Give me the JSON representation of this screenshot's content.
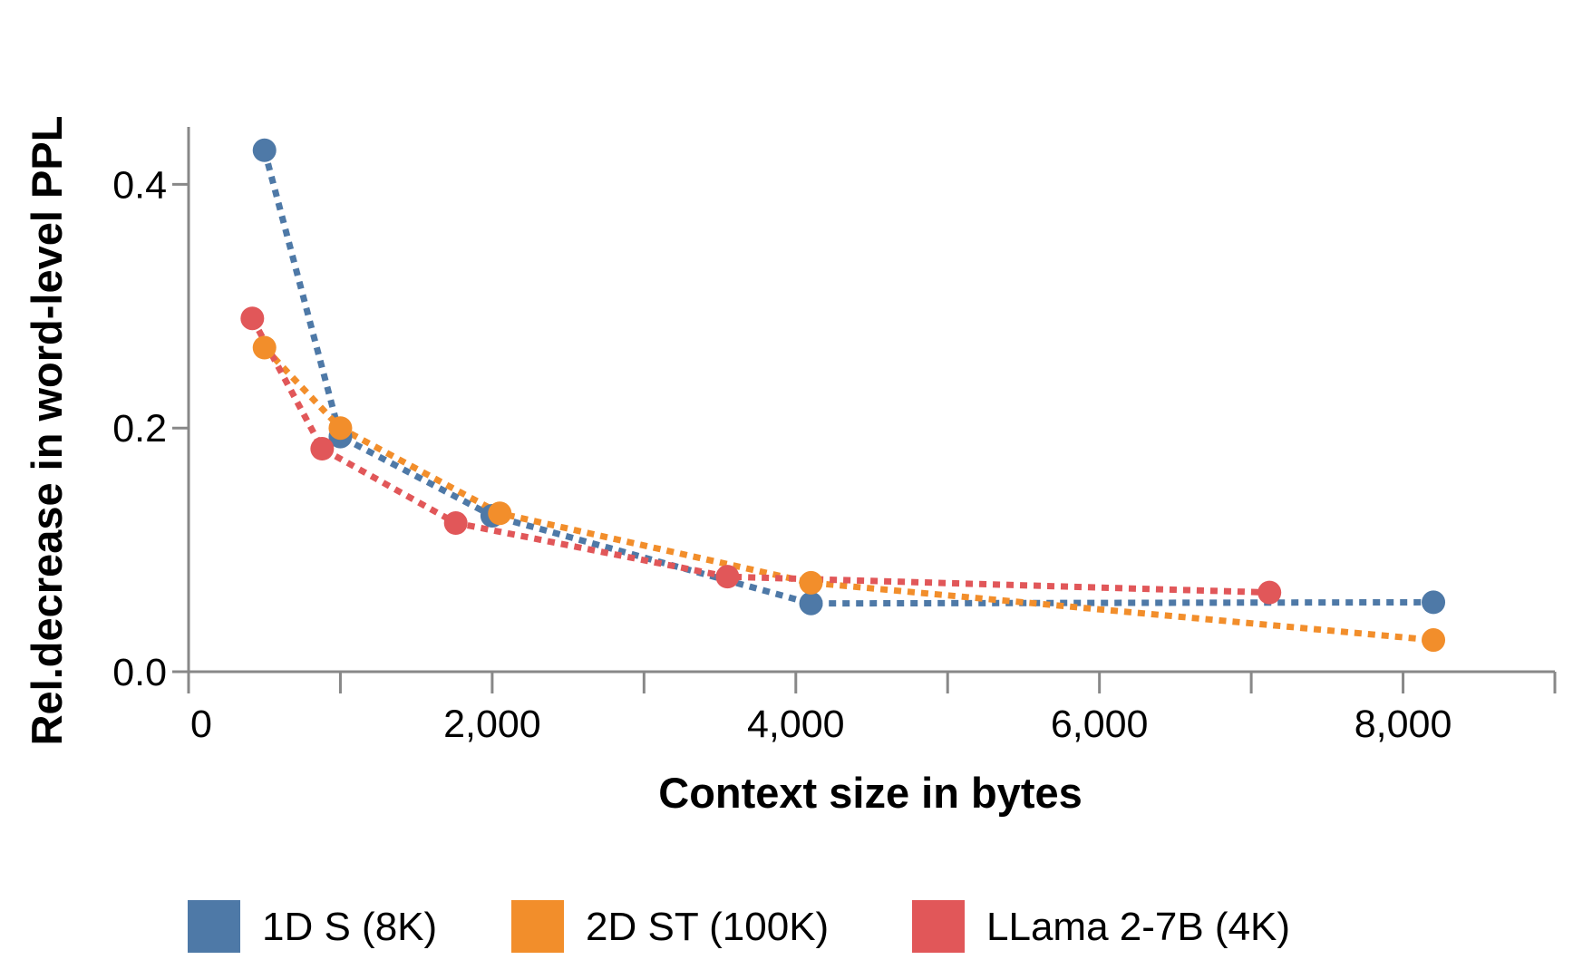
{
  "chart_data": {
    "type": "line",
    "title": "",
    "xlabel": "Context size in bytes",
    "ylabel": "Rel.decrease in word-level PPL",
    "xlim": [
      0,
      9000
    ],
    "ylim": [
      0,
      0.45
    ],
    "x_ticks": [
      {
        "value": 0,
        "label": "0"
      },
      {
        "value": 2000,
        "label": "2,000"
      },
      {
        "value": 4000,
        "label": "4,000"
      },
      {
        "value": 6000,
        "label": "6,000"
      },
      {
        "value": 8000,
        "label": "8,000"
      }
    ],
    "x_minor_ticks": [
      1000,
      3000,
      5000,
      7000,
      9000
    ],
    "y_ticks": [
      {
        "value": 0.0,
        "label": "0.0"
      },
      {
        "value": 0.2,
        "label": "0.2"
      },
      {
        "value": 0.4,
        "label": "0.4"
      }
    ],
    "grid": false,
    "line_style": "dotted",
    "legend_position": "bottom",
    "series": [
      {
        "name": "1D S (8K)",
        "color": "#4e79a7",
        "x": [
          500,
          1000,
          2000,
          4100,
          8200
        ],
        "y": [
          0.428,
          0.193,
          0.128,
          0.056,
          0.057
        ]
      },
      {
        "name": "2D ST (100K)",
        "color": "#f28e2b",
        "x": [
          500,
          1000,
          2050,
          4100,
          8200
        ],
        "y": [
          0.266,
          0.2,
          0.13,
          0.073,
          0.026
        ]
      },
      {
        "name": "LLama 2-7B (4K)",
        "color": "#e15759",
        "x": [
          420,
          880,
          1760,
          3550,
          7120
        ],
        "y": [
          0.29,
          0.183,
          0.122,
          0.078,
          0.065
        ]
      }
    ]
  }
}
